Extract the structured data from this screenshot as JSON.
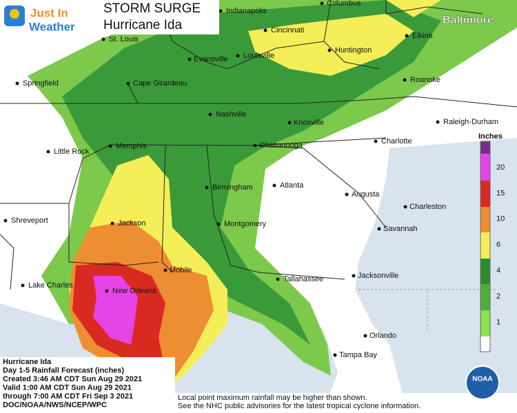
{
  "logo": {
    "line1": "Just In",
    "line2": "Weather"
  },
  "title": {
    "line1": "STORM SURGE",
    "line2": "Hurricane Ida"
  },
  "corner_city": "Baltimore",
  "cities": [
    "Indianapolis",
    "Columbus",
    "Cincinnati",
    "St. Louis",
    "Louisville",
    "Evansville",
    "Huntington",
    "Elkins",
    "Springfield",
    "Cape Girardeau",
    "Roanoke",
    "Nashville",
    "Knoxville",
    "Raleigh-Durham",
    "Charlotte",
    "Little Rock",
    "Memphis",
    "Chattanooga",
    "Birmingham",
    "Atlanta",
    "Augusta",
    "Shreveport",
    "Jackson",
    "Montgomery",
    "Charleston",
    "Savannah",
    "Mobile",
    "Tallahassee",
    "Jacksonville",
    "Lake Charles",
    "New Orleans",
    "Orlando",
    "Tampa Bay"
  ],
  "legend": {
    "title": "Inches",
    "labels": [
      "20",
      "15",
      "10",
      "6",
      "4",
      "2",
      "1"
    ]
  },
  "info": [
    "Hurricane Ida",
    "Day 1-5 Rainfall Forecast (inches)",
    "Created 3:46 AM CDT Sun Aug 29 2021",
    "Valid 1:00 AM CDT Sun Aug 29 2021",
    "through 7:00 AM CDT Fri Sep 3 2021",
    "DOC/NOAA/NWS/NCEP/WPC"
  ],
  "footnote": [
    "Local point maximum rainfall may be higher than shown.",
    "See the NHC public advisories for the latest tropical cyclone information."
  ],
  "badge": "NOAA"
}
